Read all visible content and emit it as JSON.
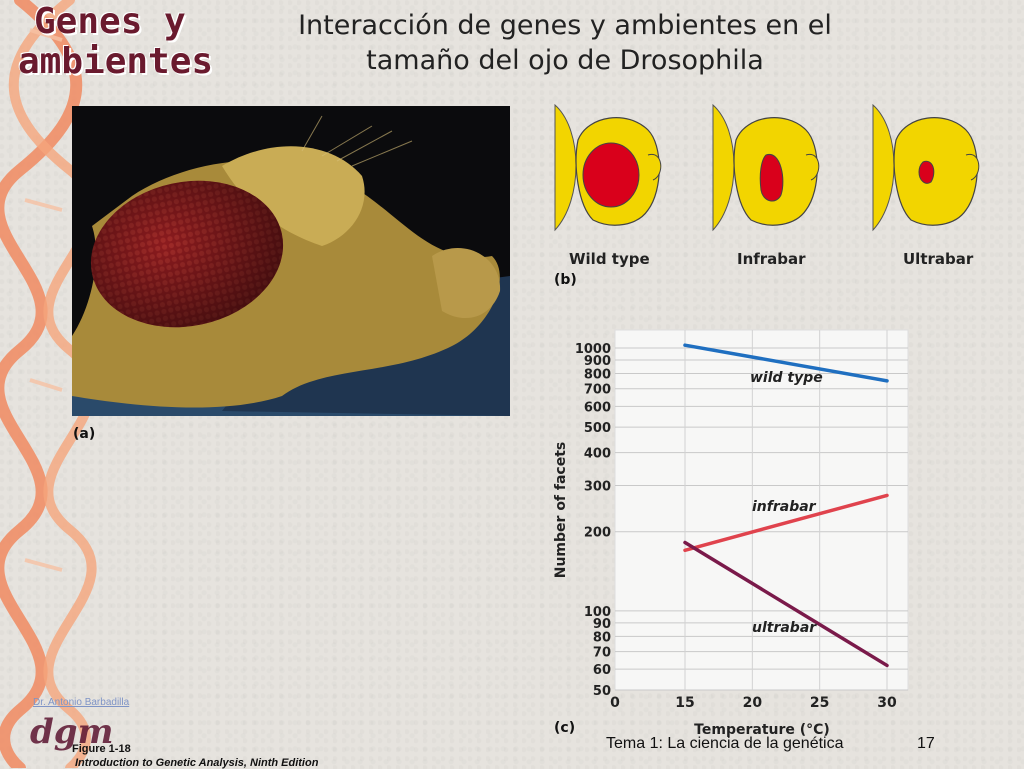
{
  "slide": {
    "left_title_line1": "Genes y",
    "left_title_line2": "ambientes",
    "main_title_line1": "Interacción de genes y ambientes en el",
    "main_title_line2": "tamaño del ojo de Drosophila",
    "footer_topic": "Tema 1: La ciencia de la genética",
    "page_number": "17",
    "figure_label": "Figure 1-18",
    "figure_source": "Introduction to Genetic Analysis, Ninth Edition",
    "author_credit": "Dr. Antonio Barbadilla",
    "logo_text": "dgm"
  },
  "figure": {
    "panel_a": "(a)",
    "panel_b": "(b)",
    "panel_c": "(c)",
    "eye_types": [
      "Wild type",
      "Infrabar",
      "Ultrabar"
    ],
    "colors": {
      "head_yellow": "#f2d500",
      "eye_red": "#d9001b",
      "photo_eye": "#8c1b1e",
      "photo_body": "#a88a3a"
    }
  },
  "chart_data": {
    "type": "line",
    "xlabel": "Temperature (°C)",
    "ylabel": "Number of facets",
    "x_ticks": [
      0,
      15,
      20,
      25,
      30
    ],
    "y_ticks": [
      50,
      60,
      70,
      80,
      90,
      100,
      200,
      300,
      400,
      500,
      600,
      700,
      800,
      900,
      1000
    ],
    "y_scale": "log",
    "ylim": [
      50,
      1000
    ],
    "grid": true,
    "series": [
      {
        "name": "wild type",
        "color": "#1f6fc0",
        "x": [
          15,
          30
        ],
        "y": [
          1025,
          750
        ]
      },
      {
        "name": "infrabar",
        "color": "#e0434d",
        "x": [
          15,
          30
        ],
        "y": [
          170,
          275
        ]
      },
      {
        "name": "ultrabar",
        "color": "#7a1a4a",
        "x": [
          15,
          30
        ],
        "y": [
          182,
          62
        ]
      }
    ]
  }
}
